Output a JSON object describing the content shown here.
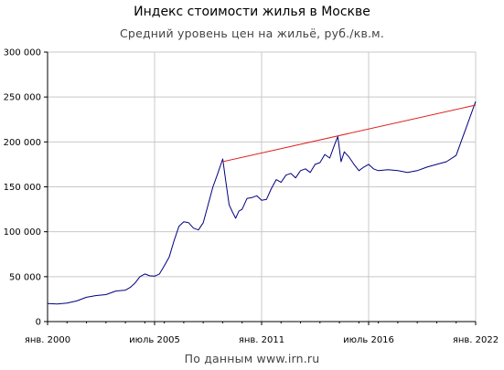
{
  "chart_data": {
    "type": "line",
    "title": "Индекс стоимости жилья в Москве",
    "subtitle": "Средний уровень цен на жильё, руб./кв.м.",
    "source": "По данным www.irn.ru",
    "ylim": [
      0,
      300000
    ],
    "yticks": [
      0,
      50000,
      100000,
      150000,
      200000,
      250000,
      300000
    ],
    "ytick_labels": [
      "0",
      "50 000",
      "100 000",
      "150 000",
      "200 000",
      "250 000",
      "300 000"
    ],
    "xlim": [
      "2000-01",
      "2022-01"
    ],
    "xticks": [
      "2000-01",
      "2005-07",
      "2011-01",
      "2016-07",
      "2022-01"
    ],
    "xtick_labels": [
      "янв. 2000",
      "июль 2005",
      "янв. 2011",
      "июль 2016",
      "янв. 2022"
    ],
    "grid": true,
    "series": [
      {
        "color": "#000080",
        "points": [
          [
            "2000-01",
            20000
          ],
          [
            "2000-07",
            19500
          ],
          [
            "2001-01",
            20500
          ],
          [
            "2001-07",
            23000
          ],
          [
            "2002-01",
            27000
          ],
          [
            "2002-07",
            29000
          ],
          [
            "2003-01",
            30000
          ],
          [
            "2003-07",
            34000
          ],
          [
            "2004-01",
            35000
          ],
          [
            "2004-04",
            38000
          ],
          [
            "2004-07",
            43000
          ],
          [
            "2004-10",
            50000
          ],
          [
            "2005-01",
            53000
          ],
          [
            "2005-04",
            51000
          ],
          [
            "2005-07",
            50500
          ],
          [
            "2005-10",
            53000
          ],
          [
            "2006-01",
            62000
          ],
          [
            "2006-04",
            72000
          ],
          [
            "2006-07",
            90000
          ],
          [
            "2006-10",
            106000
          ],
          [
            "2007-01",
            111000
          ],
          [
            "2007-04",
            110000
          ],
          [
            "2007-07",
            104000
          ],
          [
            "2007-10",
            102000
          ],
          [
            "2008-01",
            110000
          ],
          [
            "2008-04",
            130000
          ],
          [
            "2008-07",
            150000
          ],
          [
            "2008-10",
            165000
          ],
          [
            "2009-01",
            181000
          ],
          [
            "2009-03",
            155000
          ],
          [
            "2009-05",
            130000
          ],
          [
            "2009-07",
            122000
          ],
          [
            "2009-09",
            115000
          ],
          [
            "2009-11",
            123000
          ],
          [
            "2010-01",
            125000
          ],
          [
            "2010-04",
            137000
          ],
          [
            "2010-07",
            138000
          ],
          [
            "2010-10",
            140000
          ],
          [
            "2011-01",
            135000
          ],
          [
            "2011-04",
            136000
          ],
          [
            "2011-07",
            148000
          ],
          [
            "2011-10",
            158000
          ],
          [
            "2012-01",
            155000
          ],
          [
            "2012-04",
            163000
          ],
          [
            "2012-07",
            165000
          ],
          [
            "2012-10",
            160000
          ],
          [
            "2013-01",
            168000
          ],
          [
            "2013-04",
            170000
          ],
          [
            "2013-07",
            166000
          ],
          [
            "2013-10",
            175000
          ],
          [
            "2014-01",
            177000
          ],
          [
            "2014-04",
            186000
          ],
          [
            "2014-07",
            182000
          ],
          [
            "2014-10",
            197000
          ],
          [
            "2014-12",
            206000
          ],
          [
            "2015-02",
            178000
          ],
          [
            "2015-04",
            189000
          ],
          [
            "2015-07",
            183000
          ],
          [
            "2015-10",
            175000
          ],
          [
            "2016-01",
            168000
          ],
          [
            "2016-04",
            172000
          ],
          [
            "2016-07",
            175000
          ],
          [
            "2016-10",
            170000
          ],
          [
            "2017-01",
            168000
          ],
          [
            "2017-07",
            169000
          ],
          [
            "2018-01",
            168000
          ],
          [
            "2018-07",
            166000
          ],
          [
            "2019-01",
            168000
          ],
          [
            "2019-07",
            172000
          ],
          [
            "2020-01",
            175000
          ],
          [
            "2020-07",
            178000
          ],
          [
            "2021-01",
            185000
          ],
          [
            "2021-04",
            200000
          ],
          [
            "2021-07",
            215000
          ],
          [
            "2021-10",
            230000
          ],
          [
            "2022-01",
            245000
          ]
        ]
      },
      {
        "color": "#e02020",
        "points": [
          [
            "2009-01",
            178000
          ],
          [
            "2022-01",
            241000
          ]
        ]
      }
    ]
  }
}
